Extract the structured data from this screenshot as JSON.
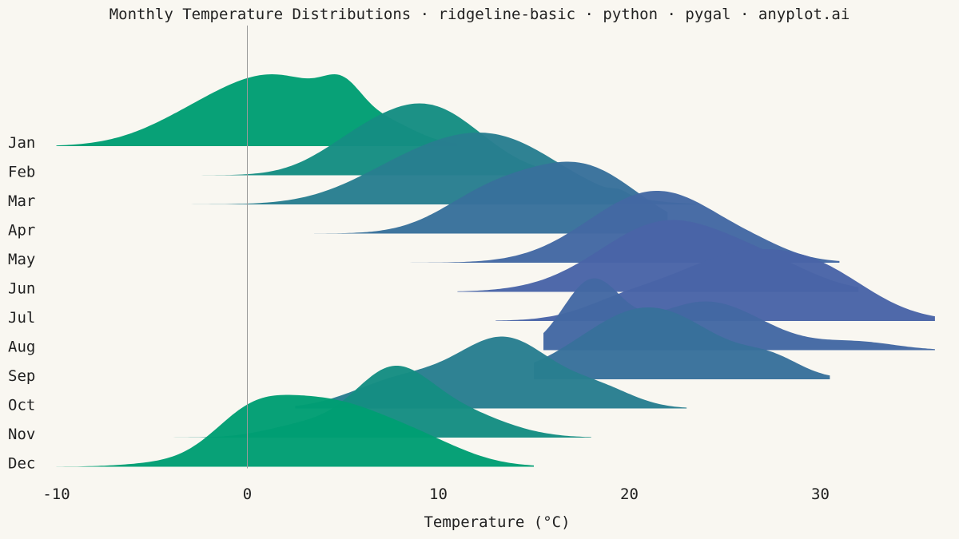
{
  "chart_data": {
    "type": "ridgeline",
    "title": "Monthly Temperature Distributions · ridgeline-basic · python · pygal · anyplot.ai",
    "xlabel": "Temperature (°C)",
    "xlim": [
      -10,
      36
    ],
    "xticks": [
      -10,
      0,
      10,
      20,
      30
    ],
    "zero_line": true,
    "colors": {
      "background": "#f9f7f1",
      "gradient_start": "#009e73",
      "gradient_mid": "#2a7d8e",
      "gradient_end": "#4a63a8",
      "zero_line": "#9a9a9a"
    },
    "series": [
      {
        "name": "Jan",
        "range": [
          -10,
          11
        ],
        "peak": 1.5,
        "components": [
          [
            1.5,
            3.5,
            1.0
          ],
          [
            5.0,
            1.0,
            0.35
          ],
          [
            7.5,
            1.5,
            0.15
          ],
          [
            -3.5,
            2.5,
            0.15
          ]
        ]
      },
      {
        "name": "Feb",
        "range": [
          -5.5,
          16
        ],
        "peak": 9.5,
        "components": [
          [
            9.5,
            2.8,
            1.0
          ],
          [
            5.5,
            2.2,
            0.3
          ]
        ]
      },
      {
        "name": "Mar",
        "range": [
          -5.5,
          23.5
        ],
        "peak": 13,
        "components": [
          [
            13.0,
            3.5,
            1.0
          ],
          [
            8.0,
            3.0,
            0.4
          ],
          [
            19.5,
            0.4,
            0.06
          ]
        ]
      },
      {
        "name": "Apr",
        "range": [
          3.5,
          22
        ],
        "peak": 17.5,
        "components": [
          [
            17.5,
            3.0,
            1.0
          ],
          [
            12.5,
            2.5,
            0.5
          ]
        ]
      },
      {
        "name": "May",
        "range": [
          7,
          31
        ],
        "peak": 22.5,
        "components": [
          [
            22.5,
            3.2,
            1.0
          ],
          [
            19.5,
            3.0,
            0.55
          ],
          [
            27.0,
            1.5,
            0.08
          ]
        ]
      },
      {
        "name": "Jun",
        "range": [
          11,
          32
        ],
        "peak": 22,
        "components": [
          [
            22.0,
            3.5,
            1.0
          ],
          [
            27.5,
            2.5,
            0.25
          ]
        ]
      },
      {
        "name": "Jul",
        "range": [
          13,
          36
        ],
        "peak": 26,
        "components": [
          [
            26.0,
            4.0,
            1.0
          ],
          [
            30.5,
            2.5,
            0.3
          ],
          [
            19.5,
            2.0,
            0.15
          ]
        ]
      },
      {
        "name": "Aug",
        "range": [
          15.5,
          36
        ],
        "peak": 18,
        "components": [
          [
            18.0,
            1.5,
            1.0
          ],
          [
            24.0,
            3.0,
            0.75
          ],
          [
            32.0,
            2.0,
            0.12
          ]
        ]
      },
      {
        "name": "Sep",
        "range": [
          15,
          30.5
        ],
        "peak": 21,
        "components": [
          [
            21.0,
            3.5,
            1.0
          ],
          [
            27.5,
            1.5,
            0.2
          ]
        ]
      },
      {
        "name": "Oct",
        "range": [
          2.5,
          23
        ],
        "peak": 13.5,
        "components": [
          [
            13.5,
            2.5,
            1.0
          ],
          [
            8.0,
            2.5,
            0.4
          ],
          [
            18.5,
            1.8,
            0.25
          ]
        ]
      },
      {
        "name": "Nov",
        "range": [
          -6.5,
          18
        ],
        "peak": 7.5,
        "components": [
          [
            7.5,
            2.0,
            1.0
          ],
          [
            11.0,
            2.5,
            0.4
          ],
          [
            3.0,
            2.0,
            0.2
          ]
        ]
      },
      {
        "name": "Dec",
        "range": [
          -10,
          15
        ],
        "peak": 4,
        "components": [
          [
            4.0,
            3.0,
            1.0
          ],
          [
            0.0,
            2.0,
            0.6
          ],
          [
            9.0,
            2.5,
            0.35
          ],
          [
            -4.5,
            2.0,
            0.05
          ]
        ]
      }
    ]
  }
}
